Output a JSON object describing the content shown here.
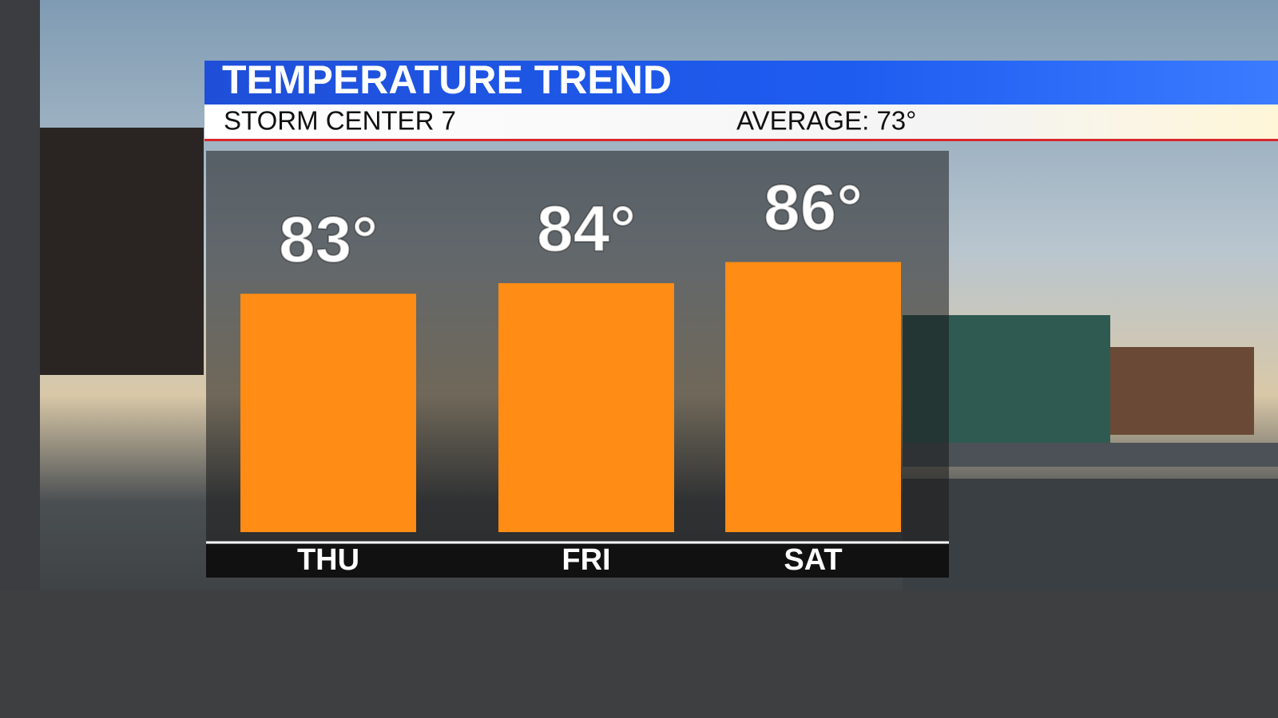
{
  "chart_data": {
    "type": "bar",
    "title": "TEMPERATURE TREND",
    "subtitle": "STORM CENTER 7",
    "annotation": "AVERAGE: 73°",
    "categories": [
      "THU",
      "FRI",
      "SAT"
    ],
    "values": [
      83,
      84,
      86
    ],
    "value_labels": [
      "83°",
      "84°",
      "86°"
    ],
    "color": "#ff8c14",
    "ylim": [
      60.5,
      96.5
    ],
    "grid": false
  }
}
